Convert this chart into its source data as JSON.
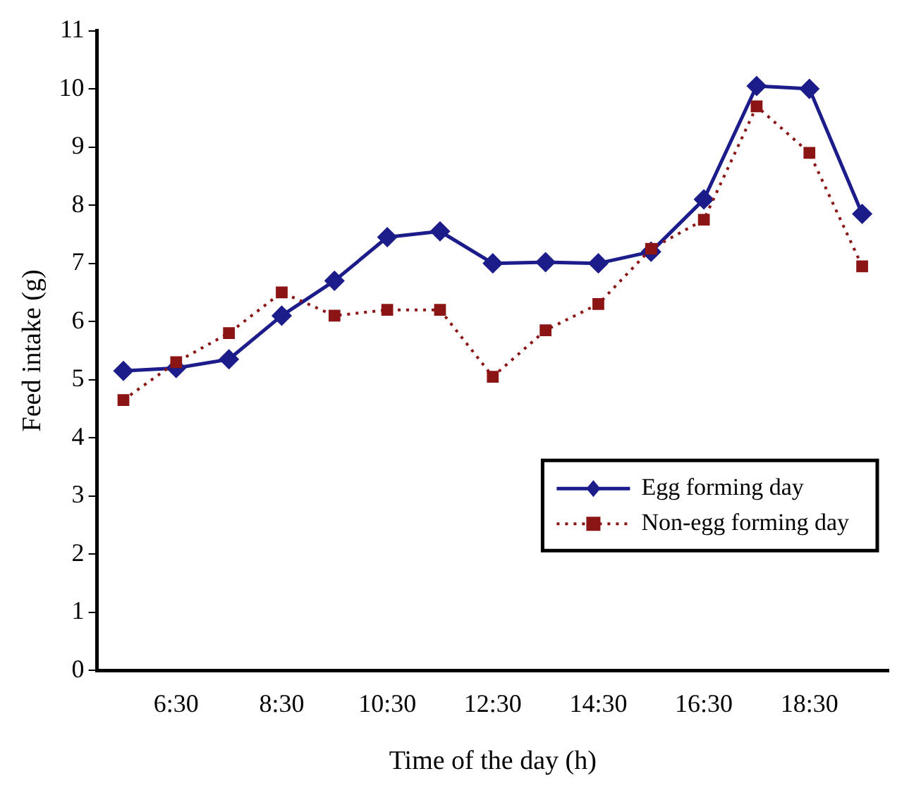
{
  "chart_data": {
    "type": "line",
    "xlabel": "Time of the day (h)",
    "ylabel": "Feed intake (g)",
    "categories": [
      null,
      "6:30",
      null,
      "8:30",
      null,
      "10:30",
      null,
      "12:30",
      null,
      "14:30",
      null,
      "16:30",
      null,
      "18:30",
      null
    ],
    "series": [
      {
        "name": "Egg forming day",
        "color": "#1c1c8a",
        "marker": "diamond",
        "line_style": "solid",
        "values": [
          5.15,
          5.2,
          5.35,
          6.1,
          6.7,
          7.45,
          7.55,
          7.0,
          7.02,
          7.0,
          7.2,
          8.1,
          10.05,
          10.0,
          7.85
        ]
      },
      {
        "name": "Non-egg forming day",
        "color": "#8b1414",
        "marker": "square",
        "line_style": "dotted",
        "values": [
          4.65,
          5.3,
          5.8,
          6.5,
          6.1,
          6.2,
          6.2,
          5.05,
          5.85,
          6.3,
          7.25,
          7.75,
          9.7,
          8.9,
          6.95
        ]
      }
    ],
    "ylim": [
      0,
      11
    ],
    "yticks": [
      0,
      1,
      2,
      3,
      4,
      5,
      6,
      7,
      8,
      9,
      10,
      11
    ],
    "grid": false,
    "legend": "bottom right"
  }
}
